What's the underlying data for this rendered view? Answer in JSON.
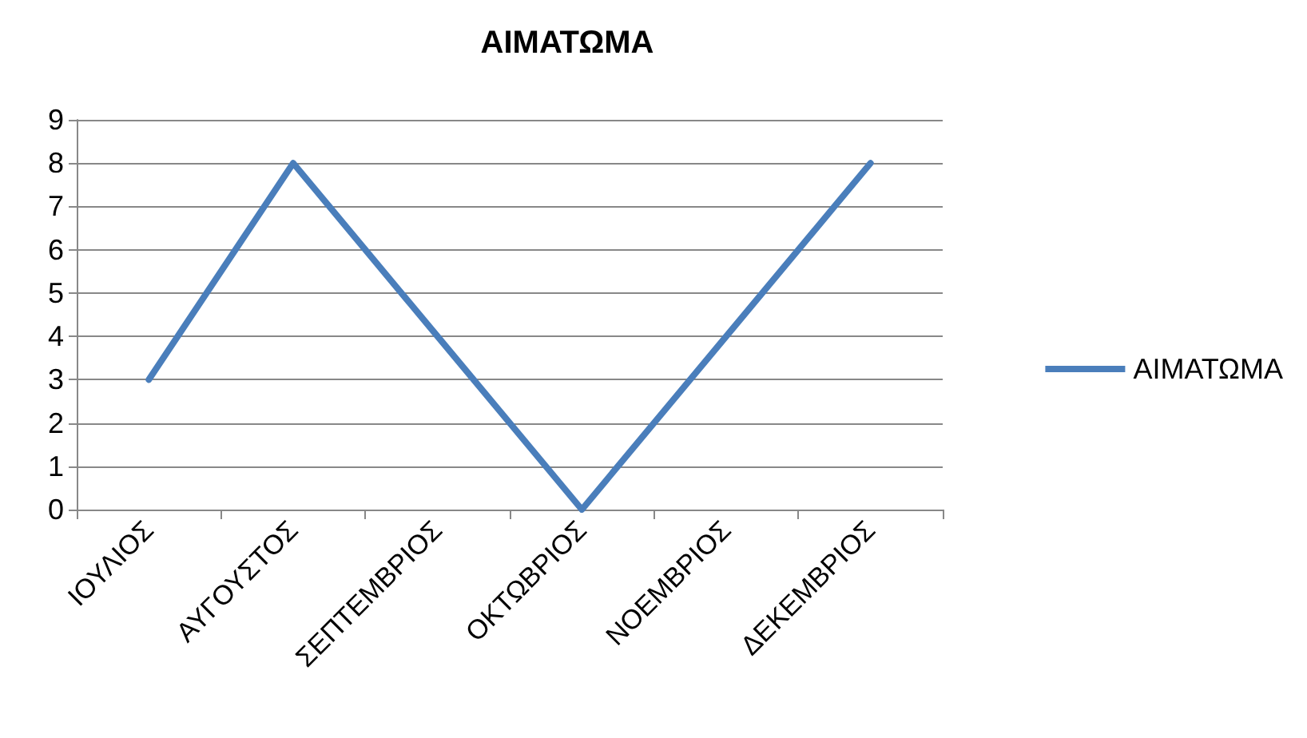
{
  "chart_data": {
    "type": "line",
    "title": "ΑΙΜΑΤΩΜΑ",
    "categories": [
      "ΙΟΥΛΙΟΣ",
      "ΑΥΓΟΥΣΤΟΣ",
      "ΣΕΠΤΕΜΒΡΙΟΣ",
      "ΟΚΤΩΒΡΙΟΣ",
      "ΝΟΕΜΒΡΙΟΣ",
      "ΔΕΚΕΜΒΡΙΟΣ"
    ],
    "series": [
      {
        "name": "ΑΙΜΑΤΩΜΑ",
        "color": "#4a7ebb",
        "values": [
          3,
          8,
          4,
          0,
          4,
          8
        ]
      }
    ],
    "ylim": [
      0,
      9
    ],
    "yticks": [
      0,
      1,
      2,
      3,
      4,
      5,
      6,
      7,
      8,
      9
    ],
    "grid": "y",
    "legend": "right",
    "marker": "none",
    "line_style": "solid"
  }
}
